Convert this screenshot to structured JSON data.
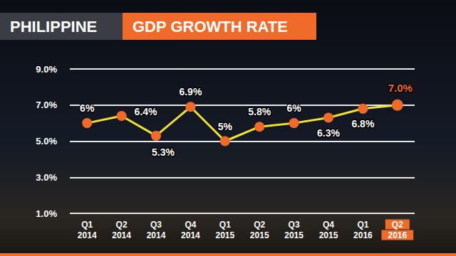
{
  "chart_data": {
    "type": "line",
    "title": "PHILIPPINE",
    "subtitle": "GDP GROWTH RATE",
    "categories": [
      "Q1\n2014",
      "Q2\n2014",
      "Q3\n2014",
      "Q4\n2014",
      "Q1\n2015",
      "Q2\n2015",
      "Q3\n2015",
      "Q4\n2015",
      "Q1\n2016",
      "Q2\n2016"
    ],
    "values": [
      6,
      6.4,
      5.3,
      6.9,
      5,
      5.8,
      6,
      6.3,
      6.8,
      7.0
    ],
    "value_labels": [
      "6%",
      "6.4%",
      "5.3%",
      "6.9%",
      "5%",
      "5.8%",
      "6%",
      "6.3%",
      "6.8%",
      "7.0%"
    ],
    "color": "#f2e22e",
    "marker": "circle",
    "ylim": [
      1,
      9
    ],
    "yticks": [
      {
        "value": 1,
        "label": "1.0%"
      },
      {
        "value": 3,
        "label": "3.0%"
      },
      {
        "value": 5,
        "label": "5.0%"
      },
      {
        "value": 7,
        "label": "7.0%"
      },
      {
        "value": 9,
        "label": "9.0%"
      }
    ],
    "grid": true,
    "data_labels": true
  }
}
